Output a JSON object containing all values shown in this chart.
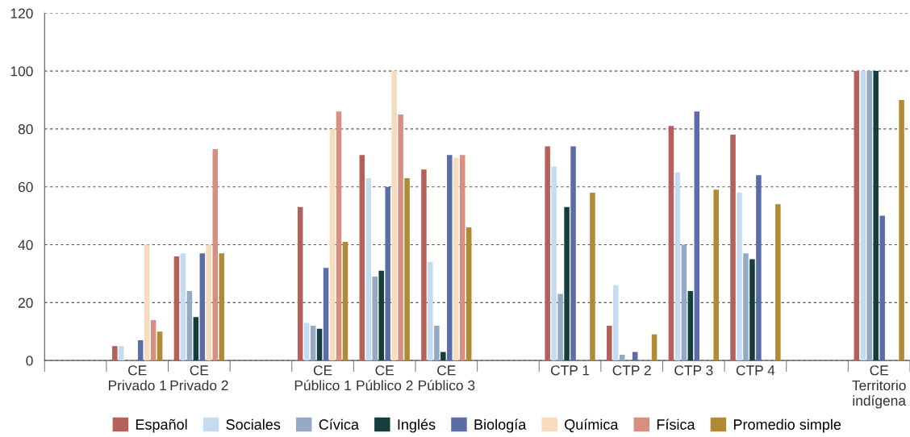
{
  "chart_data": {
    "type": "bar",
    "categories": [
      null,
      "CE\nPrivado 1",
      "CE\nPrivado 2",
      null,
      "CE\nPúblico 1",
      "CE\nPúblico 2",
      "CE\nPúblico 3",
      null,
      "CTP 1",
      "CTP 2",
      "CTP 3",
      "CTP 4",
      null,
      "CE\nTerritorio\nindígena"
    ],
    "series": [
      {
        "name": "Español",
        "color": "#b5605a",
        "values": [
          null,
          5,
          36,
          null,
          53,
          71,
          66,
          null,
          74,
          12,
          81,
          78,
          null,
          100
        ]
      },
      {
        "name": "Sociales",
        "color": "#c5dcf0",
        "values": [
          null,
          5,
          37,
          null,
          13,
          63,
          34,
          null,
          67,
          26,
          65,
          58,
          null,
          100
        ]
      },
      {
        "name": "Cívica",
        "color": "#93a9c6",
        "values": [
          null,
          null,
          24,
          null,
          12,
          29,
          12,
          null,
          23,
          2,
          40,
          37,
          null,
          100
        ]
      },
      {
        "name": "Inglés",
        "color": "#143d3d",
        "values": [
          null,
          null,
          15,
          null,
          11,
          31,
          3,
          null,
          53,
          null,
          24,
          35,
          null,
          100
        ]
      },
      {
        "name": "Biología",
        "color": "#5b6da8",
        "values": [
          null,
          7,
          37,
          null,
          32,
          60,
          71,
          null,
          74,
          3,
          86,
          64,
          null,
          50
        ]
      },
      {
        "name": "Química",
        "color": "#f6dcbc",
        "values": [
          null,
          40,
          40,
          null,
          80,
          100,
          70,
          null,
          null,
          null,
          null,
          null,
          null,
          null
        ]
      },
      {
        "name": "Física",
        "color": "#d98f80",
        "values": [
          null,
          14,
          73,
          null,
          86,
          85,
          71,
          null,
          null,
          null,
          null,
          null,
          null,
          null
        ]
      },
      {
        "name": "Promedio simple",
        "color": "#b08a35",
        "values": [
          null,
          10,
          37,
          null,
          41,
          63,
          46,
          null,
          58,
          9,
          59,
          54,
          null,
          90
        ]
      }
    ],
    "ylim": [
      0,
      120
    ],
    "yticks": [
      0,
      20,
      40,
      60,
      80,
      100,
      120
    ],
    "grid": "y",
    "legend": "bottom"
  }
}
